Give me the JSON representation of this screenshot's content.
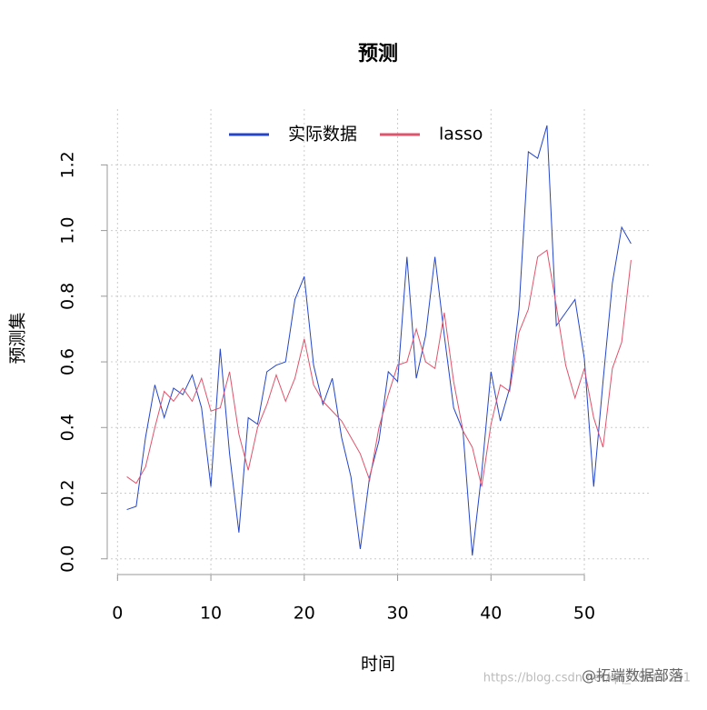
{
  "chart_data": {
    "type": "line",
    "title": "预测",
    "x_label": "时间",
    "y_label": "预测集",
    "x": [
      1,
      2,
      3,
      4,
      5,
      6,
      7,
      8,
      9,
      10,
      11,
      12,
      13,
      14,
      15,
      16,
      17,
      18,
      19,
      20,
      21,
      22,
      23,
      24,
      25,
      26,
      27,
      28,
      29,
      30,
      31,
      32,
      33,
      34,
      35,
      36,
      37,
      38,
      39,
      40,
      41,
      42,
      43,
      44,
      45,
      46,
      47,
      48,
      49,
      50,
      51,
      52,
      53,
      54,
      55
    ],
    "series": [
      {
        "name": "实际数据",
        "color": "#2445c8",
        "values": [
          0.15,
          0.16,
          0.37,
          0.53,
          0.43,
          0.52,
          0.5,
          0.56,
          0.46,
          0.22,
          0.64,
          0.32,
          0.08,
          0.43,
          0.41,
          0.57,
          0.59,
          0.6,
          0.79,
          0.86,
          0.59,
          0.47,
          0.55,
          0.37,
          0.25,
          0.03,
          0.25,
          0.36,
          0.57,
          0.54,
          0.92,
          0.55,
          0.68,
          0.92,
          0.68,
          0.46,
          0.39,
          0.01,
          0.26,
          0.57,
          0.42,
          0.52,
          0.76,
          1.24,
          1.22,
          1.32,
          0.71,
          0.75,
          0.79,
          0.61,
          0.22,
          0.54,
          0.84,
          1.01,
          0.96
        ]
      },
      {
        "name": "lasso",
        "color": "#df536b",
        "values": [
          0.25,
          0.23,
          0.28,
          0.4,
          0.51,
          0.48,
          0.52,
          0.48,
          0.55,
          0.45,
          0.46,
          0.57,
          0.38,
          0.27,
          0.4,
          0.47,
          0.56,
          0.48,
          0.55,
          0.67,
          0.53,
          0.48,
          0.45,
          0.42,
          0.37,
          0.32,
          0.24,
          0.4,
          0.5,
          0.59,
          0.6,
          0.7,
          0.6,
          0.58,
          0.75,
          0.54,
          0.39,
          0.34,
          0.22,
          0.41,
          0.53,
          0.51,
          0.69,
          0.76,
          0.92,
          0.94,
          0.77,
          0.59,
          0.49,
          0.58,
          0.43,
          0.34,
          0.58,
          0.66,
          0.91
        ]
      }
    ],
    "xlim": [
      -1.2,
      57.2
    ],
    "ylim": [
      -0.07,
      1.37
    ],
    "xticks": [
      0,
      10,
      20,
      30,
      40,
      50
    ],
    "yticks": [
      {
        "value": 0,
        "label": "0.0"
      },
      {
        "value": 0.2,
        "label": "0.2"
      },
      {
        "value": 0.4,
        "label": "0.4"
      },
      {
        "value": 0.6,
        "label": "0.6"
      },
      {
        "value": 0.8,
        "label": "0.8"
      },
      {
        "value": 1,
        "label": "1.0"
      },
      {
        "value": 1.2,
        "label": "1.2"
      }
    ],
    "grid": true,
    "legend": "top",
    "watermark": [
      "https://blog.csdn.net/qq_19600291",
      "@拓端数据部落"
    ]
  }
}
